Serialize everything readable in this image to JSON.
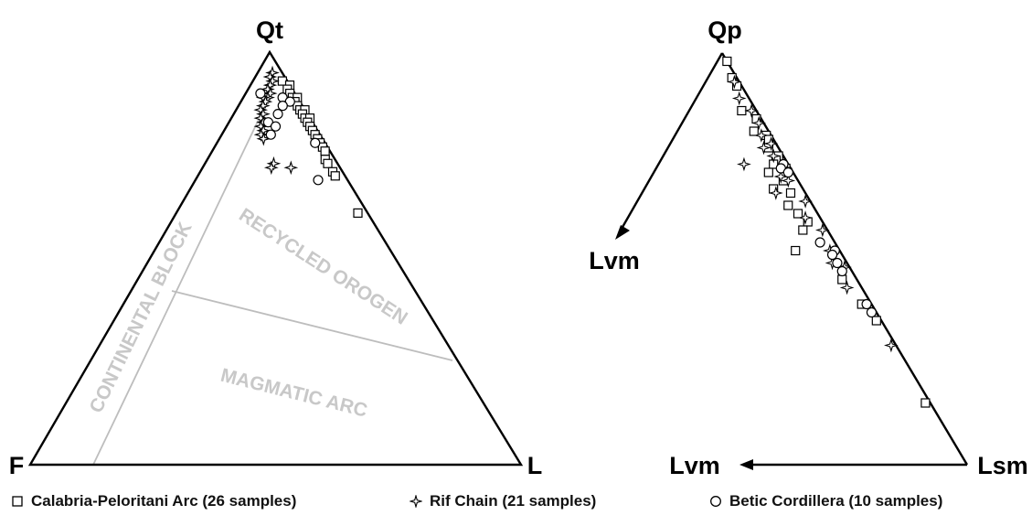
{
  "chart_data": [
    {
      "type": "scatter",
      "subtype": "ternary",
      "vertices": {
        "top": "Qt",
        "left": "F",
        "right": "L"
      },
      "fields": [
        {
          "name": "RECYCLED OROGEN"
        },
        {
          "name": "MAGMATIC ARC"
        },
        {
          "name": "CONTINENTAL BLOCK"
        }
      ],
      "series": [
        {
          "name": "Calabria-Peloritani Arc (26 samples)",
          "marker": "square",
          "points": [
            [
              93,
              1,
              6
            ],
            [
              92,
              0,
              8
            ],
            [
              91,
              1,
              8
            ],
            [
              90,
              1,
              9
            ],
            [
              89,
              1,
              10
            ],
            [
              89,
              0,
              11
            ],
            [
              88,
              1,
              11
            ],
            [
              87,
              1,
              12
            ],
            [
              86,
              1,
              13
            ],
            [
              86,
              0,
              14
            ],
            [
              85,
              1,
              14
            ],
            [
              84,
              1,
              15
            ],
            [
              84,
              0,
              16
            ],
            [
              83,
              1,
              16
            ],
            [
              82,
              1,
              17
            ],
            [
              81,
              1,
              18
            ],
            [
              80,
              1,
              19
            ],
            [
              79,
              1,
              20
            ],
            [
              78,
              1,
              21
            ],
            [
              77,
              1,
              22
            ],
            [
              76,
              1,
              23
            ],
            [
              74,
              2,
              24
            ],
            [
              73,
              2,
              25
            ],
            [
              71,
              2,
              27
            ],
            [
              70,
              2,
              28
            ],
            [
              61,
              2,
              37
            ]
          ]
        },
        {
          "name": "Rif Chain (21 samples)",
          "marker": "star",
          "points": [
            [
              95,
              2,
              3
            ],
            [
              94,
              3,
              3
            ],
            [
              93,
              3,
              4
            ],
            [
              92,
              4,
              4
            ],
            [
              91,
              5,
              4
            ],
            [
              90,
              5,
              5
            ],
            [
              89,
              6,
              5
            ],
            [
              89,
              7,
              4
            ],
            [
              88,
              7,
              5
            ],
            [
              87,
              8,
              5
            ],
            [
              86,
              9,
              5
            ],
            [
              85,
              9,
              6
            ],
            [
              84,
              10,
              6
            ],
            [
              83,
              10,
              7
            ],
            [
              82,
              11,
              7
            ],
            [
              81,
              11,
              8
            ],
            [
              80,
              12,
              8
            ],
            [
              79,
              12,
              9
            ],
            [
              73,
              13,
              14
            ],
            [
              72,
              14,
              14
            ],
            [
              72,
              10,
              18
            ]
          ]
        },
        {
          "name": "Betic Cordillera (10 samples)",
          "marker": "circle",
          "points": [
            [
              90,
              7,
              3
            ],
            [
              89,
              3,
              8
            ],
            [
              88,
              2,
              10
            ],
            [
              87,
              4,
              9
            ],
            [
              85,
              6,
              9
            ],
            [
              83,
              9,
              8
            ],
            [
              82,
              8,
              10
            ],
            [
              80,
              10,
              10
            ],
            [
              78,
              2,
              20
            ],
            [
              69,
              6,
              25
            ]
          ]
        }
      ]
    },
    {
      "type": "scatter",
      "subtype": "ternary",
      "vertices": {
        "top": "Qp",
        "left": "Lvm",
        "right": "Lsm"
      },
      "arrow_labels": [
        "Lvm",
        "Lvm"
      ],
      "series": [
        {
          "name": "Calabria-Peloritani Arc (26 samples)",
          "marker": "square",
          "points": [
            [
              98,
              0,
              2
            ],
            [
              94,
              1,
              5
            ],
            [
              92,
              1,
              7
            ],
            [
              86,
              3,
              11
            ],
            [
              84,
              1,
              15
            ],
            [
              81,
              3,
              16
            ],
            [
              80,
              1,
              19
            ],
            [
              79,
              1,
              20
            ],
            [
              77,
              2,
              21
            ],
            [
              75,
              1,
              24
            ],
            [
              74,
              2,
              24
            ],
            [
              73,
              3,
              24
            ],
            [
              72,
              1,
              27
            ],
            [
              71,
              5,
              24
            ],
            [
              69,
              3,
              28
            ],
            [
              67,
              6,
              27
            ],
            [
              66,
              3,
              31
            ],
            [
              63,
              5,
              32
            ],
            [
              61,
              4,
              35
            ],
            [
              59,
              3,
              38
            ],
            [
              57,
              5,
              38
            ],
            [
              52,
              9,
              39
            ],
            [
              45,
              3,
              52
            ],
            [
              39,
              2,
              59
            ],
            [
              35,
              1,
              64
            ],
            [
              15,
              1,
              84
            ]
          ]
        },
        {
          "name": "Rif Chain (21 samples)",
          "marker": "star",
          "points": [
            [
              93,
              1,
              6
            ],
            [
              89,
              2,
              9
            ],
            [
              86,
              1,
              13
            ],
            [
              83,
              1,
              16
            ],
            [
              80,
              2,
              18
            ],
            [
              78,
              1,
              21
            ],
            [
              77,
              3,
              20
            ],
            [
              75,
              2,
              23
            ],
            [
              73,
              9,
              18
            ],
            [
              72,
              1,
              27
            ],
            [
              70,
              3,
              27
            ],
            [
              69,
              2,
              29
            ],
            [
              66,
              6,
              28
            ],
            [
              64,
              1,
              35
            ],
            [
              60,
              3,
              37
            ],
            [
              57,
              1,
              42
            ],
            [
              52,
              2,
              46
            ],
            [
              49,
              3,
              48
            ],
            [
              48,
              1,
              51
            ],
            [
              43,
              3,
              54
            ],
            [
              29,
              1,
              70
            ]
          ]
        },
        {
          "name": "Betic Cordillera (10 samples)",
          "marker": "circle",
          "points": [
            [
              73,
              1,
              26
            ],
            [
              72,
              2,
              26
            ],
            [
              71,
              1,
              28
            ],
            [
              54,
              3,
              43
            ],
            [
              52,
              1,
              47
            ],
            [
              51,
              2,
              47
            ],
            [
              49,
              2,
              49
            ],
            [
              47,
              2,
              51
            ],
            [
              39,
              1,
              60
            ],
            [
              37,
              1,
              62
            ]
          ]
        }
      ]
    }
  ]
}
